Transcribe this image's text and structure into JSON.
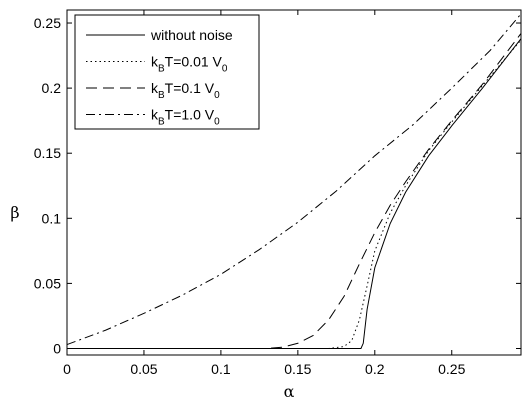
{
  "chart_data": {
    "type": "line",
    "xlabel": "α",
    "ylabel": "β",
    "xlim": [
      0,
      0.295
    ],
    "ylim": [
      -0.005,
      0.26
    ],
    "xticks": [
      0,
      0.05,
      0.1,
      0.15,
      0.2,
      0.25
    ],
    "xtick_labels": [
      "0",
      "0.05",
      "0.1",
      "0.15",
      "0.2",
      "0.25"
    ],
    "yticks": [
      0,
      0.05,
      0.1,
      0.15,
      0.2,
      0.25
    ],
    "ytick_labels": [
      "0",
      "0.05",
      "0.1",
      "0.15",
      "0.2",
      "0.25"
    ],
    "grid": false,
    "legend_position": "top-left",
    "series": [
      {
        "name": "without noise",
        "legend": {
          "main": "without noise",
          "sub": "",
          "tail": "",
          "sub2": ""
        },
        "dash": "",
        "x": [
          0,
          0.05,
          0.1,
          0.15,
          0.18,
          0.191,
          0.1925,
          0.195,
          0.2,
          0.21,
          0.22,
          0.235,
          0.25,
          0.27,
          0.295
        ],
        "y": [
          0,
          0,
          0,
          0,
          0,
          0,
          0.004,
          0.03,
          0.062,
          0.096,
          0.12,
          0.148,
          0.171,
          0.2,
          0.238
        ]
      },
      {
        "name": "kBT=0.01 V0",
        "legend": {
          "main": "k",
          "sub": "B",
          "tail": "T=0.01 V",
          "sub2": "0"
        },
        "dash": "1.5,3",
        "x": [
          0,
          0.1,
          0.17,
          0.18,
          0.185,
          0.19,
          0.195,
          0.2,
          0.21,
          0.22,
          0.235,
          0.25,
          0.27,
          0.295
        ],
        "y": [
          0,
          0,
          0,
          0.0015,
          0.006,
          0.022,
          0.048,
          0.075,
          0.104,
          0.125,
          0.152,
          0.174,
          0.202,
          0.237
        ]
      },
      {
        "name": "kBT=0.1 V0",
        "legend": {
          "main": "k",
          "sub": "B",
          "tail": "T=0.1 V",
          "sub2": "0"
        },
        "dash": "11,6",
        "x": [
          0,
          0.1,
          0.13,
          0.14,
          0.15,
          0.16,
          0.17,
          0.18,
          0.19,
          0.2,
          0.21,
          0.22,
          0.235,
          0.25,
          0.27,
          0.295
        ],
        "y": [
          0,
          0,
          0,
          0.001,
          0.004,
          0.01,
          0.022,
          0.04,
          0.065,
          0.089,
          0.11,
          0.128,
          0.153,
          0.175,
          0.203,
          0.242
        ]
      },
      {
        "name": "kBT=1.0 V0",
        "legend": {
          "main": "k",
          "sub": "B",
          "tail": "T=1.0 V",
          "sub2": "0"
        },
        "dash": "9,4,2,4",
        "x": [
          0,
          0.025,
          0.05,
          0.075,
          0.1,
          0.125,
          0.15,
          0.175,
          0.2,
          0.225,
          0.25,
          0.275,
          0.295
        ],
        "y": [
          0.003,
          0.014,
          0.027,
          0.041,
          0.057,
          0.076,
          0.097,
          0.121,
          0.148,
          0.172,
          0.2,
          0.229,
          0.257
        ]
      }
    ]
  }
}
